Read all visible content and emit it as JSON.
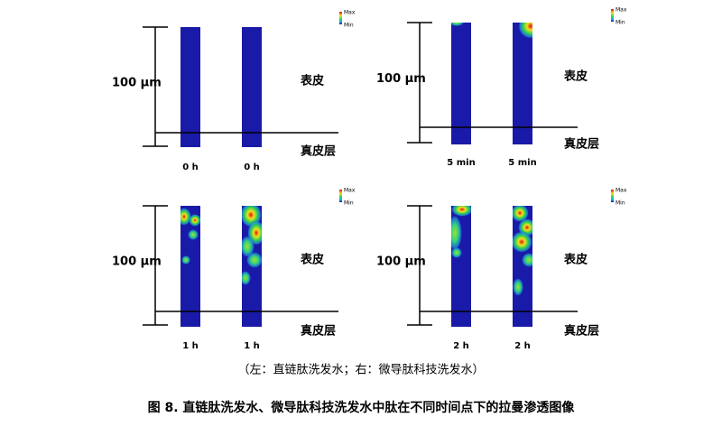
{
  "panels": [
    {
      "scale_label": "100 μm",
      "upper_label": "表皮",
      "lower_label": "真皮层",
      "legend": {
        "max": "Max",
        "min": "Min"
      },
      "time_labels": [
        "0 h",
        "0 h"
      ]
    },
    {
      "scale_label": "100 μm",
      "upper_label": "表皮",
      "lower_label": "真皮层",
      "legend": {
        "max": "Max",
        "min": "Min"
      },
      "time_labels": [
        "5 min",
        "5 min"
      ]
    },
    {
      "scale_label": "100 μm",
      "upper_label": "表皮",
      "lower_label": "真皮层",
      "legend": {
        "max": "Max",
        "min": "Min"
      },
      "time_labels": [
        "1 h",
        "1 h"
      ]
    },
    {
      "scale_label": "100 μm",
      "upper_label": "表皮",
      "lower_label": "真皮层",
      "legend": {
        "max": "Max",
        "min": "Min"
      },
      "time_labels": [
        "2 h",
        "2 h"
      ]
    }
  ],
  "caption": "（左：直链肽洗发水；右：微导肽科技洗发水）",
  "title": "图 8. 直链肽洗发水、微导肽科技洗发水中肽在不同时间点下的拉曼渗透图像"
}
